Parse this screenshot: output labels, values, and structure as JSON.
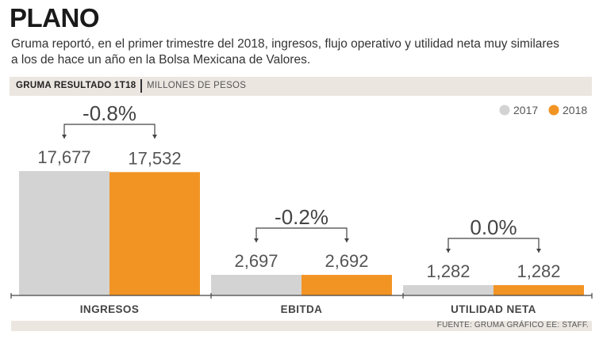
{
  "header": {
    "title": "PLANO",
    "subtitle": "Gruma reportó, en el primer trimestre del 2018, ingresos, flujo operativo y utilidad neta muy similares a los de hace un año en la Bolsa Mexicana de Valores."
  },
  "chart_band": {
    "label": "GRUMA RESULTADO 1T18",
    "unit": "MILLONES DE PESOS"
  },
  "footer": {
    "source": "FUENTE: GRUMA GRÁFICO EE: STAFF."
  },
  "colors": {
    "series_2017": "#d3d3d3",
    "series_2018": "#f29424",
    "text": "#555555",
    "band": "#ebe6e0"
  },
  "chart_data": {
    "type": "bar",
    "title": "GRUMA RESULTADO 1T18",
    "ylabel": "MILLONES DE PESOS",
    "xlabel": "",
    "legend_position": "top-right",
    "categories": [
      "INGRESOS",
      "EBITDA",
      "UTILIDAD NETA"
    ],
    "series": [
      {
        "name": "2017",
        "values": [
          17677,
          2697,
          1282
        ],
        "labels": [
          "17,677",
          "2,697",
          "1,282"
        ]
      },
      {
        "name": "2018",
        "values": [
          17532,
          2692,
          1282
        ],
        "labels": [
          "17,532",
          "2,692",
          "1,282"
        ]
      }
    ],
    "changes": [
      "-0.8%",
      "-0.2%",
      "0.0%"
    ],
    "scale_note": "bars not linearly scaled in original"
  }
}
